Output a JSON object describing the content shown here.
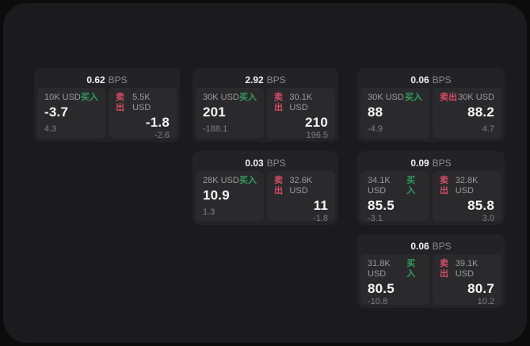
{
  "labels": {
    "bps_unit": "BPS",
    "buy": "买入",
    "sell": "卖出"
  },
  "colors": {
    "buy": "#2f9e5b",
    "sell": "#d64b66",
    "page_bg": "#1b1b1d",
    "card_bg": "#232325",
    "tile_bg": "#2a2a2c",
    "frame_bg": "#0c0c0c"
  },
  "cards": [
    {
      "bps": "0.62",
      "buy": {
        "size": "10K USD",
        "value": "-3.7",
        "delta": "4.3"
      },
      "sell": {
        "size": "5.5K USD",
        "value": "-1.8",
        "delta": "-2.6"
      }
    },
    {
      "bps": "2.92",
      "buy": {
        "size": "30K USD",
        "value": "201",
        "delta": "-188.1"
      },
      "sell": {
        "size": "30.1K USD",
        "value": "210",
        "delta": "196.5"
      }
    },
    {
      "bps": "0.06",
      "buy": {
        "size": "30K USD",
        "value": "88",
        "delta": "-4.9"
      },
      "sell": {
        "size": "30K USD",
        "value": "88.2",
        "delta": "4.7"
      }
    },
    {
      "bps": "0.03",
      "buy": {
        "size": "28K USD",
        "value": "10.9",
        "delta": "1.3"
      },
      "sell": {
        "size": "32.6K USD",
        "value": "11",
        "delta": "-1.8"
      }
    },
    {
      "bps": "0.09",
      "buy": {
        "size": "34.1K USD",
        "value": "85.5",
        "delta": "-3.1"
      },
      "sell": {
        "size": "32.8K USD",
        "value": "85.8",
        "delta": "3.0"
      }
    },
    {
      "bps": "0.06",
      "buy": {
        "size": "31.8K USD",
        "value": "80.5",
        "delta": "-10.8"
      },
      "sell": {
        "size": "39.1K USD",
        "value": "80.7",
        "delta": "10.2"
      }
    }
  ]
}
